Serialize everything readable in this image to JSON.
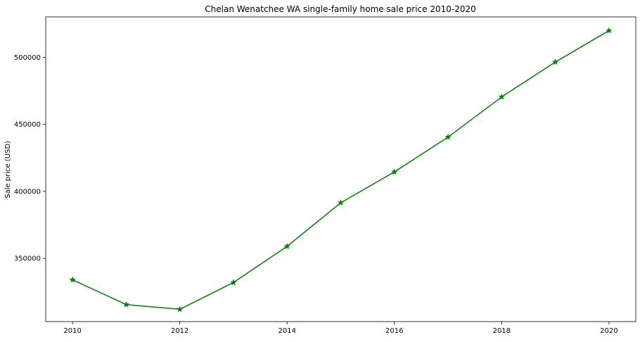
{
  "chart_data": {
    "type": "line",
    "title": "Chelan Wenatchee WA single-family home sale price 2010-2020",
    "xlabel": "",
    "ylabel": "Sale price (USD)",
    "x": [
      2010,
      2011,
      2012,
      2013,
      2014,
      2015,
      2016,
      2017,
      2018,
      2019,
      2020
    ],
    "series": [
      {
        "values": [
          334000,
          315500,
          312000,
          332000,
          359000,
          391500,
          414500,
          440500,
          470500,
          496500,
          520000
        ],
        "color": "#008000",
        "marker": "star"
      }
    ],
    "xticks": [
      2010,
      2012,
      2014,
      2016,
      2018,
      2020
    ],
    "yticks": [
      350000,
      400000,
      450000,
      500000
    ],
    "xlim": [
      2009.5,
      2020.5
    ],
    "ylim": [
      302800,
      530200
    ],
    "grid": false,
    "legend": "none"
  }
}
